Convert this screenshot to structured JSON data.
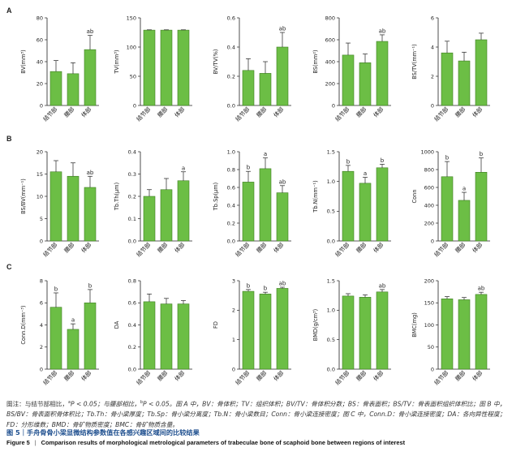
{
  "figure": {
    "bar_color": "#6cbe45",
    "panel_labels": [
      "A",
      "B",
      "C"
    ],
    "note_line1": "图注：与结节部相比，",
    "note_a": "a",
    "note_mid": "P < 0.05；与腰部相比，",
    "note_b": "b",
    "note_tail": "P < 0.05。图 A 中，BV：骨体积；TV：组织体积；BV/TV：骨体积分数；BS：骨表面积；BS/TV：骨表面积组织体积比；图 B 中，BS/BV：骨表面积骨体积比；Tb.Th：骨小梁厚度；Tb.Sp：骨小梁分离度；Tb.N：骨小梁数目；Conn：骨小梁连接密度；图 C 中，Conn.D：骨小梁连接密度；DA：各向异性程度；FD：分形维数；BMD：骨矿物质密度；BMC：骨矿物质含量。",
    "title_zh": "图 5｜手舟骨骨小梁显微结构参数值在各感兴趣区域间的比较结果",
    "title_en_label": "Figure 5",
    "title_en_sep": "|",
    "title_en": "Comparison results of morphological metrological parameters of trabeculae bone of scaphoid bone between regions of interest"
  },
  "chart_data": [
    {
      "type": "bar",
      "panel": "A",
      "categories": [
        "结节部",
        "腰部",
        "体部"
      ],
      "ylabel": "BV(mm³)",
      "ylim": [
        0,
        80
      ],
      "yticks": [
        0,
        20,
        40,
        60,
        80
      ],
      "values": [
        31,
        29,
        51
      ],
      "errors": [
        10,
        10,
        13
      ],
      "labels": [
        "",
        "",
        "ab"
      ]
    },
    {
      "type": "bar",
      "panel": "A",
      "categories": [
        "结节部",
        "腰部",
        "体部"
      ],
      "ylabel": "TV(mm³)",
      "ylim": [
        0,
        150
      ],
      "yticks": [
        0,
        50,
        100,
        150
      ],
      "values": [
        129,
        129,
        129
      ],
      "errors": [
        0.5,
        0.5,
        0.5
      ],
      "labels": [
        "",
        "",
        ""
      ]
    },
    {
      "type": "bar",
      "panel": "A",
      "categories": [
        "结节部",
        "腰部",
        "体部"
      ],
      "ylabel": "BV/TV(%)",
      "ylim": [
        0,
        0.6
      ],
      "yticks": [
        0.0,
        0.2,
        0.4,
        0.6
      ],
      "values": [
        0.24,
        0.22,
        0.4
      ],
      "errors": [
        0.08,
        0.08,
        0.1
      ],
      "labels": [
        "",
        "",
        "ab"
      ]
    },
    {
      "type": "bar",
      "panel": "A",
      "categories": [
        "结节部",
        "腰部",
        "体部"
      ],
      "ylabel": "BS(mm²)",
      "ylim": [
        0,
        800
      ],
      "yticks": [
        0,
        200,
        400,
        600,
        800
      ],
      "values": [
        460,
        390,
        585
      ],
      "errors": [
        110,
        80,
        60
      ],
      "labels": [
        "",
        "",
        "ab"
      ]
    },
    {
      "type": "bar",
      "panel": "A",
      "categories": [
        "结节部",
        "腰部",
        "体部"
      ],
      "ylabel": "BS/TV(mm⁻¹)",
      "ylim": [
        0,
        6
      ],
      "yticks": [
        0,
        2,
        4,
        6
      ],
      "values": [
        3.6,
        3.05,
        4.5
      ],
      "errors": [
        0.8,
        0.6,
        0.45
      ],
      "labels": [
        "",
        "",
        ""
      ]
    },
    {
      "type": "bar",
      "panel": "B",
      "categories": [
        "结节部",
        "腰部",
        "体部"
      ],
      "ylabel": "BS/BV(mm⁻¹)",
      "ylim": [
        0,
        20
      ],
      "yticks": [
        0,
        5,
        10,
        15,
        20
      ],
      "values": [
        15.5,
        14.5,
        12.0
      ],
      "errors": [
        2.5,
        3.0,
        2.5
      ],
      "labels": [
        "",
        "",
        "ab"
      ]
    },
    {
      "type": "bar",
      "panel": "B",
      "categories": [
        "结节部",
        "腰部",
        "体部"
      ],
      "ylabel": "Tb.Th(μm)",
      "ylim": [
        0,
        0.4
      ],
      "yticks": [
        0.0,
        0.1,
        0.2,
        0.3,
        0.4
      ],
      "values": [
        0.2,
        0.23,
        0.27
      ],
      "errors": [
        0.03,
        0.05,
        0.04
      ],
      "labels": [
        "",
        "",
        "a"
      ]
    },
    {
      "type": "bar",
      "panel": "B",
      "categories": [
        "结节部",
        "腰部",
        "体部"
      ],
      "ylabel": "Tb.Sp(μm)",
      "ylim": [
        0,
        1.0
      ],
      "yticks": [
        0.0,
        0.2,
        0.4,
        0.6,
        0.8,
        1.0
      ],
      "values": [
        0.66,
        0.81,
        0.54
      ],
      "errors": [
        0.12,
        0.12,
        0.08
      ],
      "labels": [
        "b",
        "a",
        "ab"
      ]
    },
    {
      "type": "bar",
      "panel": "B",
      "categories": [
        "结节部",
        "腰部",
        "体部"
      ],
      "ylabel": "Tb.N(mm⁻¹)",
      "ylim": [
        0,
        1.5
      ],
      "yticks": [
        0.0,
        0.5,
        1.0,
        1.5
      ],
      "values": [
        1.17,
        0.97,
        1.23
      ],
      "errors": [
        0.1,
        0.1,
        0.06
      ],
      "labels": [
        "b",
        "a",
        "b"
      ]
    },
    {
      "type": "bar",
      "panel": "B",
      "categories": [
        "结节部",
        "腰部",
        "体部"
      ],
      "ylabel": "Conn",
      "ylim": [
        0,
        1000
      ],
      "yticks": [
        0,
        200,
        400,
        600,
        800,
        1000
      ],
      "values": [
        720,
        455,
        770
      ],
      "errors": [
        170,
        90,
        160
      ],
      "labels": [
        "b",
        "a",
        "b"
      ]
    },
    {
      "type": "bar",
      "panel": "C",
      "categories": [
        "结节部",
        "腰部",
        "体部"
      ],
      "ylabel": "Conn.D(mm⁻³)",
      "ylim": [
        0,
        8
      ],
      "yticks": [
        0,
        2,
        4,
        6,
        8
      ],
      "values": [
        5.6,
        3.6,
        6.0
      ],
      "errors": [
        1.3,
        0.5,
        1.2
      ],
      "labels": [
        "b",
        "a",
        "b"
      ]
    },
    {
      "type": "bar",
      "panel": "C",
      "categories": [
        "结节部",
        "腰部",
        "体部"
      ],
      "ylabel": "DA",
      "ylim": [
        0,
        0.8
      ],
      "yticks": [
        0.0,
        0.2,
        0.4,
        0.6,
        0.8
      ],
      "values": [
        0.61,
        0.59,
        0.59
      ],
      "errors": [
        0.07,
        0.05,
        0.03
      ],
      "labels": [
        "",
        "",
        ""
      ]
    },
    {
      "type": "bar",
      "panel": "C",
      "categories": [
        "结节部",
        "腰部",
        "体部"
      ],
      "ylabel": "FD",
      "ylim": [
        0,
        3
      ],
      "yticks": [
        0,
        1,
        2,
        3
      ],
      "values": [
        2.64,
        2.55,
        2.74
      ],
      "errors": [
        0.06,
        0.06,
        0.04
      ],
      "labels": [
        "b",
        "b",
        "ab"
      ]
    },
    {
      "type": "bar",
      "panel": "C",
      "categories": [
        "结节部",
        "腰部",
        "体部"
      ],
      "ylabel": "BMD(g/cm³)",
      "ylim": [
        0,
        1.5
      ],
      "yticks": [
        0.0,
        0.5,
        1.0,
        1.5
      ],
      "values": [
        1.24,
        1.22,
        1.31
      ],
      "errors": [
        0.04,
        0.04,
        0.04
      ],
      "labels": [
        "",
        "",
        "ab"
      ]
    },
    {
      "type": "bar",
      "panel": "C",
      "categories": [
        "结节部",
        "腰部",
        "体部"
      ],
      "ylabel": "BMC(mg)",
      "ylim": [
        0,
        200
      ],
      "yticks": [
        0,
        50,
        100,
        150,
        200
      ],
      "values": [
        159,
        157,
        169
      ],
      "errors": [
        5,
        5,
        5
      ],
      "labels": [
        "",
        "",
        "ab"
      ]
    }
  ]
}
